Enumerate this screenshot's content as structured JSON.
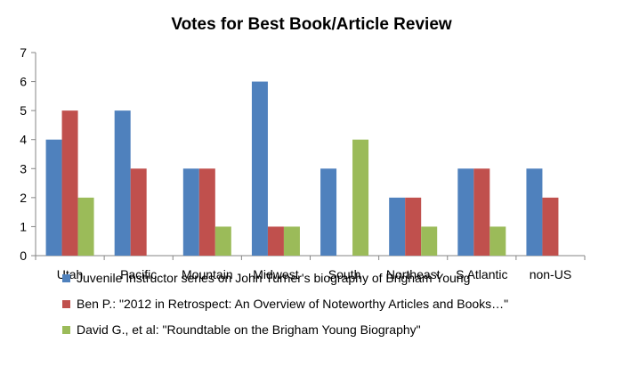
{
  "chart_data": {
    "type": "bar",
    "title": "Votes for Best Book/Article Review",
    "xlabel": "",
    "ylabel": "",
    "ylim": [
      0,
      7
    ],
    "yticks": [
      0,
      1,
      2,
      3,
      4,
      5,
      6,
      7
    ],
    "grid": false,
    "legend": "bottom",
    "categories": [
      "Utah",
      "Pacific",
      "Mountain",
      "Midwest",
      "South",
      "Northeast",
      "S Atlantic",
      "non-US"
    ],
    "series": [
      {
        "name": "Juvenile Instructor series on John Turner's biography of Brigham Young",
        "color": "#4F81BD",
        "values": [
          4,
          5,
          3,
          6,
          3,
          2,
          3,
          3
        ]
      },
      {
        "name": "Ben P.: \"2012 in Retrospect: An Overview of Noteworthy Articles and Books…\"",
        "color": "#C0504D",
        "values": [
          5,
          3,
          3,
          1,
          0,
          2,
          3,
          2
        ]
      },
      {
        "name": "David G., et al: \"Roundtable on the Brigham Young Biography\"",
        "color": "#9BBB59",
        "values": [
          2,
          0,
          1,
          1,
          4,
          1,
          1,
          0
        ]
      }
    ]
  }
}
